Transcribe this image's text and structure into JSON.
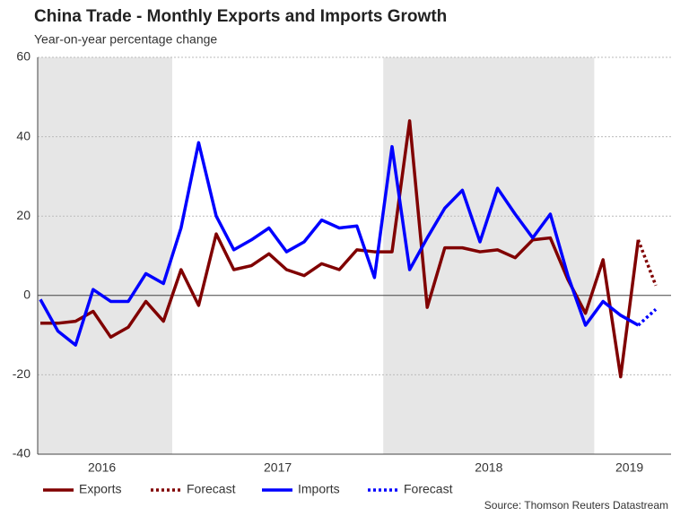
{
  "chart_data": {
    "type": "line",
    "title": "China Trade - Monthly Exports and Imports Growth",
    "subtitle": "Year-on-year percentage change",
    "source": "Source: Thomson Reuters Datastream",
    "categories": [
      null,
      null,
      null,
      "2016",
      null,
      null,
      null,
      null,
      null,
      null,
      null,
      null,
      null,
      "2017",
      null,
      null,
      null,
      null,
      null,
      null,
      null,
      null,
      null,
      null,
      null,
      "2018",
      null,
      null,
      null,
      null,
      null,
      null,
      null,
      "2019",
      null,
      null
    ],
    "series": [
      {
        "name": "Exports",
        "color": "#800000",
        "dashed": false,
        "values": [
          -7,
          -7,
          -6.5,
          -4,
          -10.5,
          -8,
          -1.5,
          -6.5,
          6.5,
          -2.5,
          15.5,
          6.5,
          7.5,
          10.5,
          6.5,
          5,
          8,
          6.5,
          11.5,
          11,
          11,
          44,
          -3,
          12,
          12,
          11,
          11.5,
          9.5,
          14,
          14.5,
          4,
          -4.5,
          9,
          -20.5,
          14,
          null
        ]
      },
      {
        "name": "Forecast",
        "color": "#800000",
        "dashed": true,
        "values": [
          null,
          null,
          null,
          null,
          null,
          null,
          null,
          null,
          null,
          null,
          null,
          null,
          null,
          null,
          null,
          null,
          null,
          null,
          null,
          null,
          null,
          null,
          null,
          null,
          null,
          null,
          null,
          null,
          null,
          null,
          null,
          null,
          null,
          null,
          14,
          2.5
        ]
      },
      {
        "name": "Imports",
        "color": "#0000ff",
        "dashed": false,
        "values": [
          -1,
          -9,
          -12.5,
          1.5,
          -1.5,
          -1.5,
          5.5,
          3,
          17,
          38.5,
          20,
          11.5,
          14,
          17,
          11,
          13.5,
          19,
          17,
          17.5,
          4.5,
          37.5,
          6.5,
          14.5,
          22,
          26.5,
          13.5,
          27,
          20.5,
          14.5,
          20.5,
          5,
          -7.5,
          -1.5,
          -5,
          -7.5,
          null
        ]
      },
      {
        "name": "Forecast",
        "color": "#0000ff",
        "dashed": true,
        "values": [
          null,
          null,
          null,
          null,
          null,
          null,
          null,
          null,
          null,
          null,
          null,
          null,
          null,
          null,
          null,
          null,
          null,
          null,
          null,
          null,
          null,
          null,
          null,
          null,
          null,
          null,
          null,
          null,
          null,
          null,
          null,
          null,
          null,
          null,
          -7.5,
          -3.5
        ]
      }
    ],
    "ylim": [
      -40,
      60
    ],
    "yticks": [
      -40,
      -20,
      0,
      20,
      40,
      60
    ],
    "grid": true
  }
}
